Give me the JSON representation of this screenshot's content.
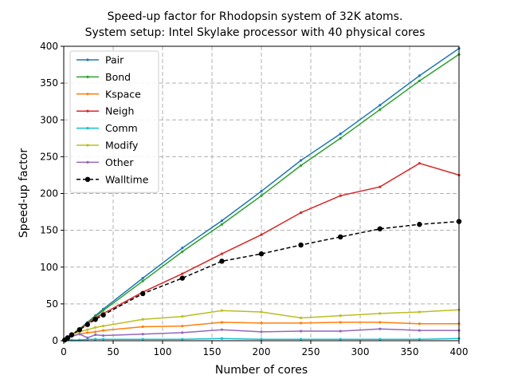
{
  "chart_data": {
    "type": "line",
    "title_lines": [
      "Speed-up factor for Rhodopsin system of 32K atoms.",
      "System setup: Intel Skylake processor with 40 physical cores"
    ],
    "xlabel": "Number of cores",
    "ylabel": "Speed-up factor",
    "xlim": [
      0,
      400
    ],
    "ylim": [
      0,
      400
    ],
    "xticks": [
      0,
      50,
      100,
      150,
      200,
      250,
      300,
      350,
      400
    ],
    "yticks": [
      0,
      50,
      100,
      150,
      200,
      250,
      300,
      350,
      400
    ],
    "grid": true,
    "legend_position": "top-left",
    "x": [
      1,
      4,
      8,
      16,
      24,
      32,
      40,
      80,
      120,
      160,
      200,
      240,
      280,
      320,
      360,
      400
    ],
    "series": [
      {
        "name": "Pair",
        "color": "#1f77b4",
        "style": "solid",
        "marker": "small",
        "values": [
          1,
          4,
          8,
          16,
          25,
          34,
          43,
          85,
          126,
          163,
          203,
          245,
          281,
          320,
          360,
          397
        ]
      },
      {
        "name": "Bond",
        "color": "#2ca02c",
        "style": "solid",
        "marker": "small",
        "values": [
          1,
          4,
          8,
          16,
          24,
          33,
          41,
          81,
          121,
          158,
          197,
          238,
          275,
          314,
          353,
          389
        ]
      },
      {
        "name": "Kspace",
        "color": "#ff7f0e",
        "style": "solid",
        "marker": "small",
        "values": [
          1,
          3,
          6,
          9,
          11,
          12,
          14,
          19,
          20,
          25,
          24,
          24,
          25,
          25,
          23,
          23
        ]
      },
      {
        "name": "Neigh",
        "color": "#d62728",
        "style": "solid",
        "marker": "small",
        "values": [
          1,
          4,
          8,
          15,
          23,
          31,
          37,
          66,
          91,
          118,
          144,
          174,
          197,
          209,
          241,
          225
        ]
      },
      {
        "name": "Comm",
        "color": "#17becf",
        "style": "solid",
        "marker": "small",
        "values": [
          1,
          1,
          1,
          1,
          2,
          2,
          2,
          2,
          2,
          3,
          2,
          2,
          2,
          2,
          2,
          3
        ]
      },
      {
        "name": "Modify",
        "color": "#bcbd22",
        "style": "solid",
        "marker": "small",
        "values": [
          1,
          4,
          8,
          12,
          15,
          18,
          20,
          29,
          33,
          41,
          39,
          31,
          34,
          37,
          39,
          42
        ]
      },
      {
        "name": "Other",
        "color": "#9467bd",
        "style": "solid",
        "marker": "small",
        "values": [
          1,
          3,
          6,
          9,
          4,
          8,
          7,
          9,
          11,
          15,
          12,
          13,
          13,
          16,
          14,
          14
        ]
      },
      {
        "name": "Walltime",
        "color": "#000000",
        "style": "dashed",
        "marker": "large",
        "values": [
          1,
          4,
          8,
          15,
          22,
          29,
          35,
          64,
          85,
          108,
          118,
          130,
          141,
          152,
          158,
          162
        ]
      }
    ]
  }
}
